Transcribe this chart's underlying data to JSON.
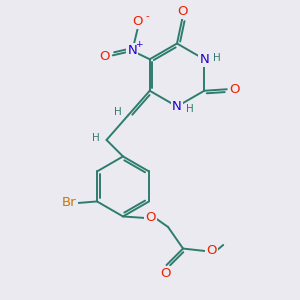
{
  "bg_color": "#eaeaf0",
  "bond_color": "#2d7d6e",
  "bond_width": 1.4,
  "atom_colors": {
    "O": "#ee2200",
    "N": "#2200cc",
    "Br": "#cc7700",
    "H": "#2d7d6e",
    "C": "#2d7d6e"
  },
  "font_size": 8.5,
  "fig_size": [
    3.0,
    3.0
  ],
  "dpi": 100
}
